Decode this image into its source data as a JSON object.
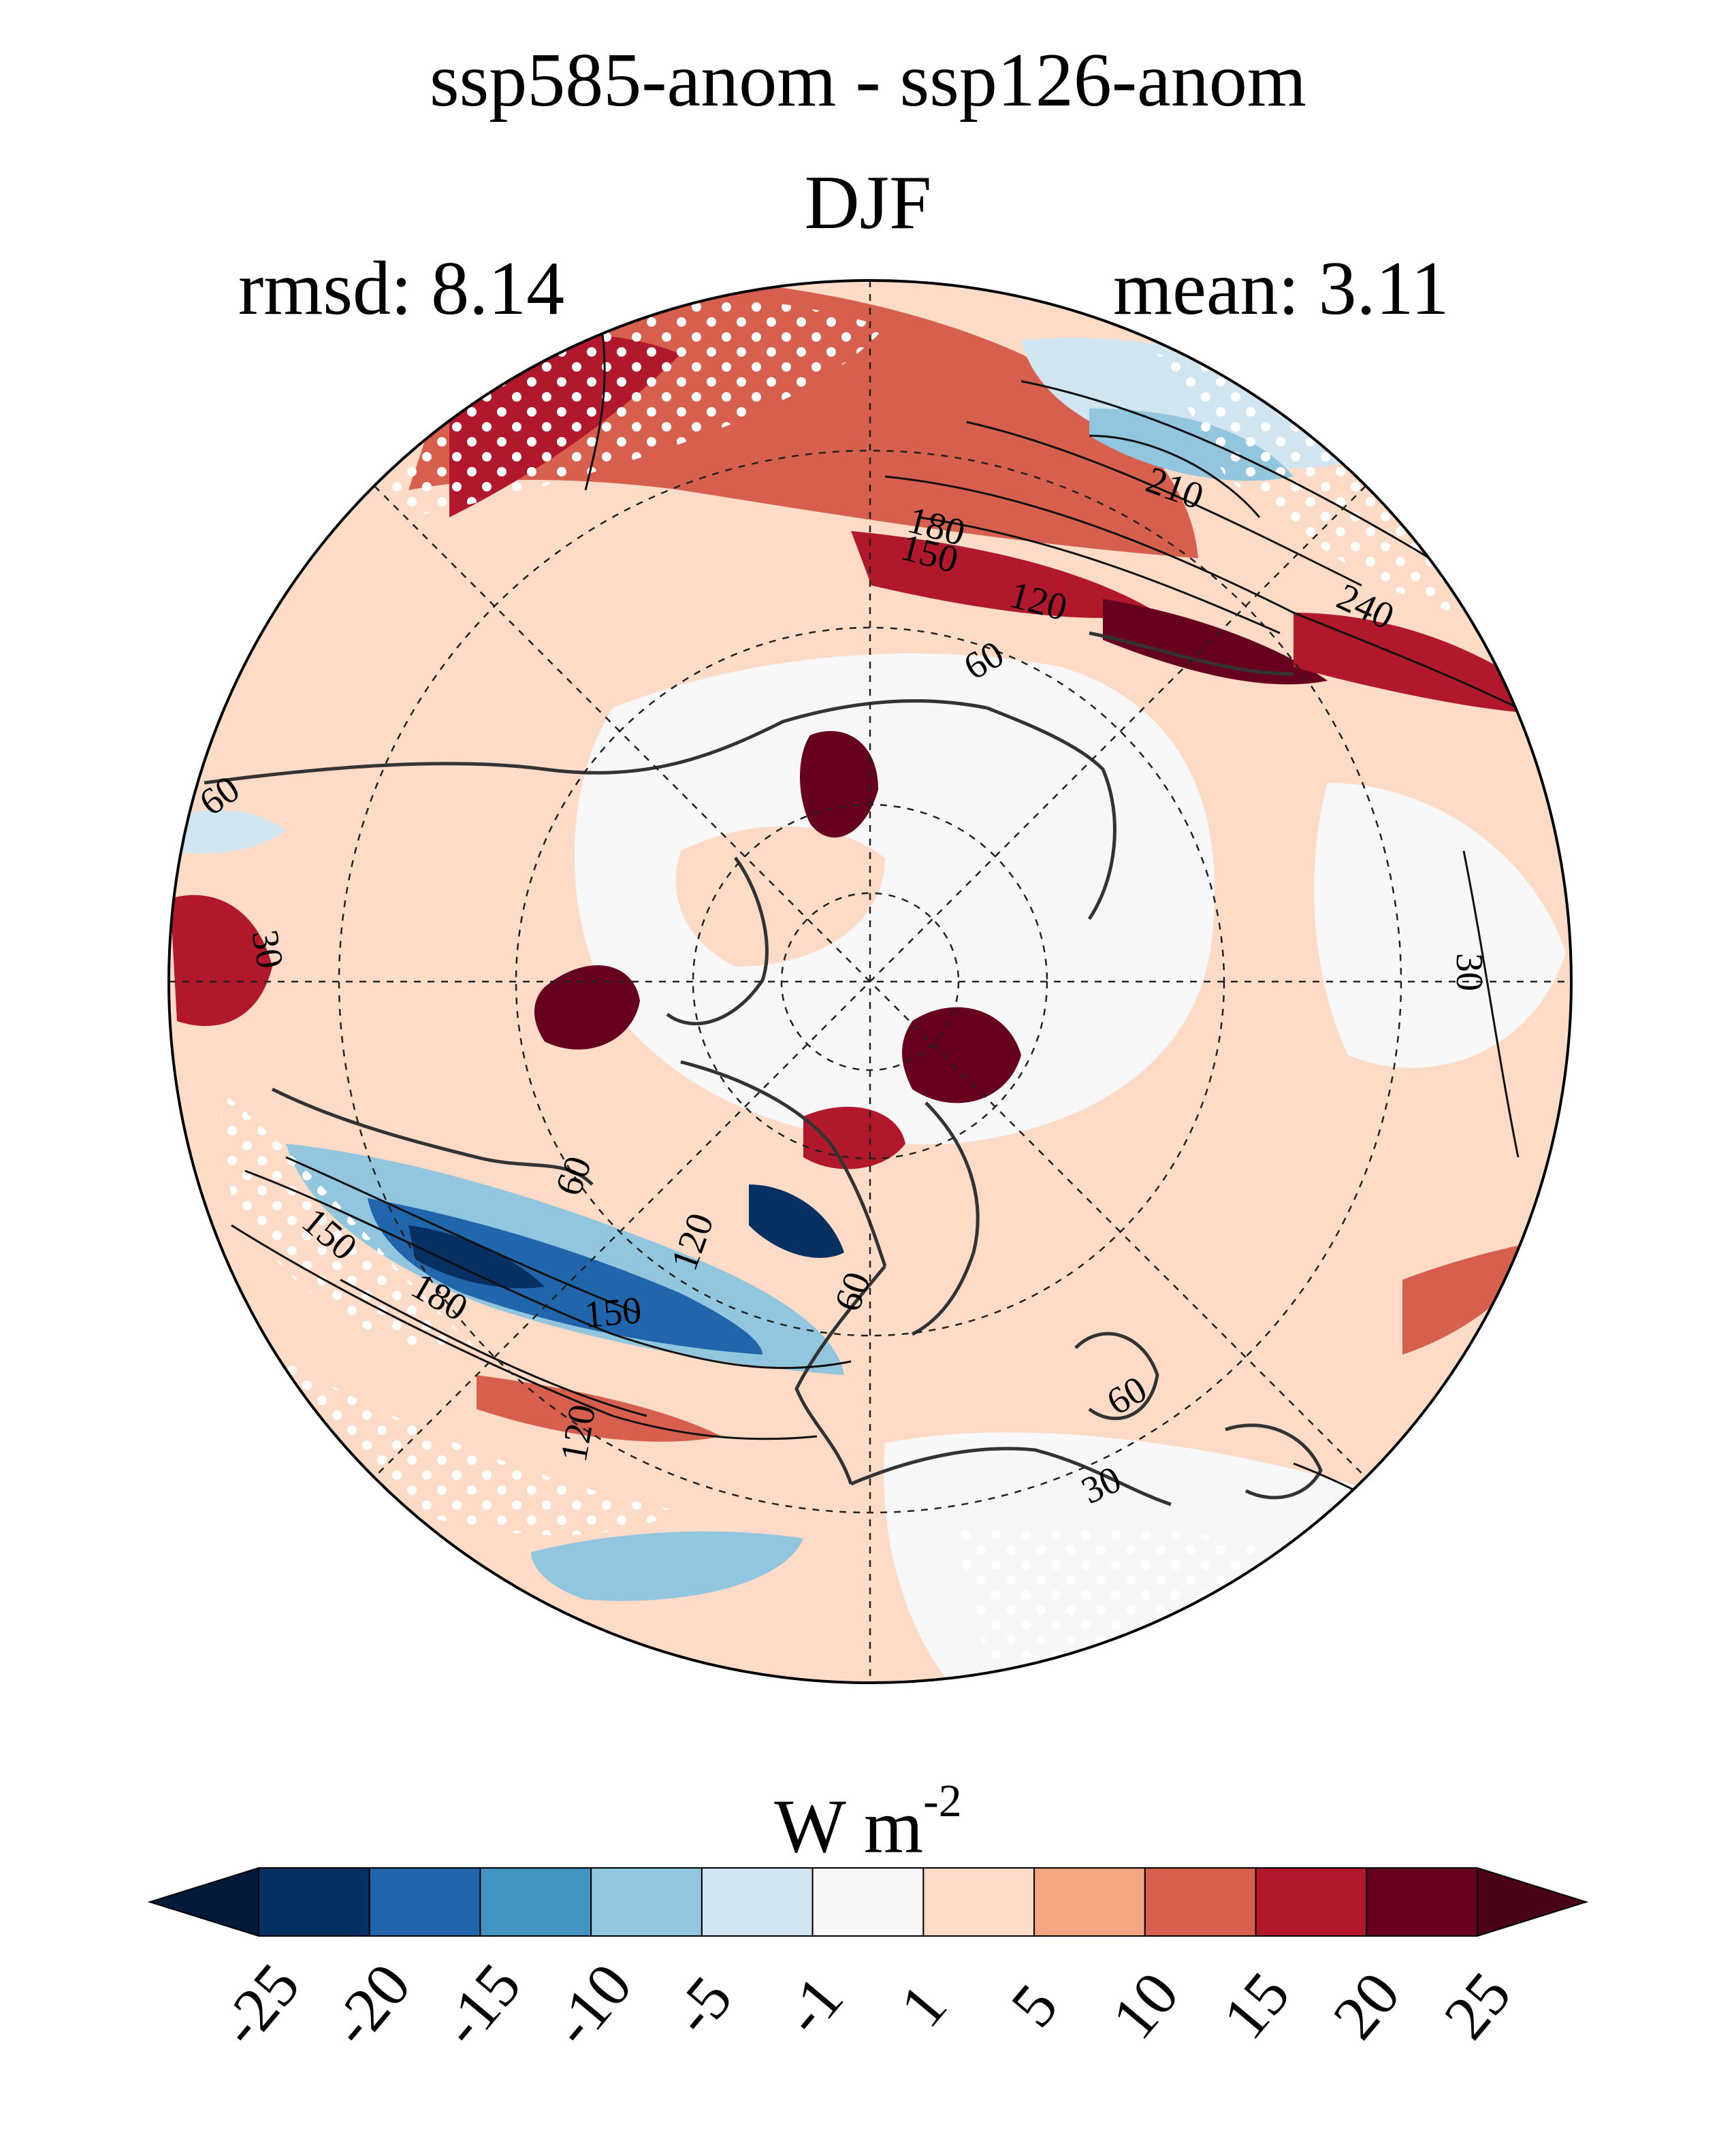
{
  "title": {
    "line1": "ssp585-anom - ssp126-anom",
    "line2": "DJF"
  },
  "stats": {
    "rmsd": "rmsd: 8.14",
    "mean": "mean: 3.11"
  },
  "units": {
    "base": "W m",
    "exponent": "-2"
  },
  "contour_labels": [
    "210",
    "240",
    "180",
    "150",
    "120",
    "60",
    "60",
    "30",
    "30",
    "60",
    "150",
    "180",
    "150",
    "120",
    "120",
    "60",
    "30",
    "60"
  ],
  "colorbar": {
    "ticks": [
      "-25",
      "-20",
      "-15",
      "-10",
      "-5",
      "-1",
      "1",
      "5",
      "10",
      "15",
      "20",
      "25"
    ],
    "colors": [
      "#053061",
      "#2166ac",
      "#4393c3",
      "#92c5de",
      "#d1e5f0",
      "#f7f7f7",
      "#fddbc7",
      "#f4a582",
      "#d6604d",
      "#b2182b",
      "#67001f"
    ],
    "under_color": "#021a3a",
    "over_color": "#4a0015"
  }
}
